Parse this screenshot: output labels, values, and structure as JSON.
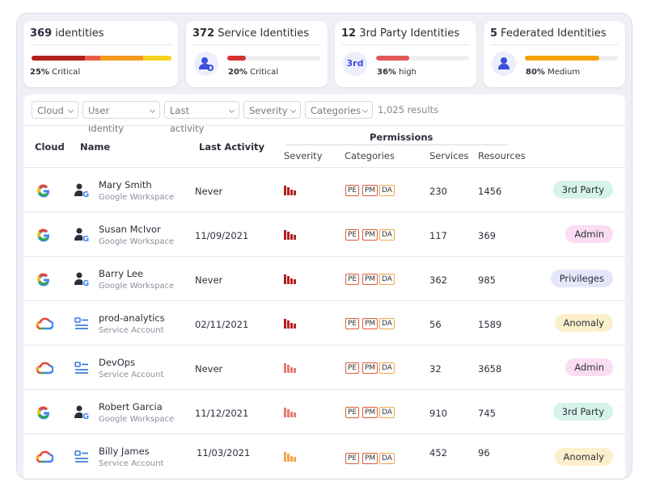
{
  "cards": [
    {
      "count": 369,
      "title": "identities",
      "percent": {
        "value": 25,
        "label": "25%"
      },
      "level": "Critical"
    },
    {
      "count": 372,
      "title": "Service Identities",
      "percent": {
        "value": 20,
        "label": "20%"
      },
      "level": "Critical",
      "color": "#d3312f"
    },
    {
      "count": 12,
      "title": "3rd Party Identities",
      "icon_text": "3rd",
      "percent": {
        "value": 36,
        "label": "36%"
      },
      "level": "high",
      "color": "#e35858"
    },
    {
      "count": 5,
      "title": "Federated Identities",
      "percent": {
        "value": 80,
        "label": "80%"
      },
      "level": "Medium",
      "color": "#f5a106"
    }
  ],
  "filters": [
    "Cloud",
    "User Identity",
    "Last activity",
    "Severity",
    "Categories"
  ],
  "results": "1,025 results",
  "columns": {
    "cloud": "Cloud",
    "name": "Name",
    "last_activity": "Last Activity",
    "permissions": "Permissions",
    "severity": "Severity",
    "categories": "Categories",
    "services": "Services",
    "resources": "Resources"
  },
  "rows": [
    {
      "name": "Mary Smith",
      "type": "Google Workspace",
      "last_activity": "Never",
      "categories": [
        "PE",
        "PM",
        "DA"
      ],
      "services": 230,
      "resources": 1456,
      "tag": "3rd Party"
    },
    {
      "name": "Susan McIvor",
      "type": "Google Workspace",
      "last_activity": "11/09/2021",
      "categories": [
        "PE",
        "PM",
        "DA"
      ],
      "services": 117,
      "resources": 369,
      "tag": "Admin"
    },
    {
      "name": "Barry Lee",
      "type": "Google Workspace",
      "last_activity": "Never",
      "categories": [
        "PE",
        "PM",
        "DA"
      ],
      "services": 362,
      "resources": 985,
      "tag": "Privileges"
    },
    {
      "name": "prod-analytics",
      "type": "Service Account",
      "last_activity": "02/11/2021",
      "categories": [
        "PE",
        "PM",
        "DA"
      ],
      "services": 56,
      "resources": 1589,
      "tag": "Anomaly"
    },
    {
      "name": "DevOps",
      "type": "Service Account",
      "last_activity": "Never",
      "categories": [
        "PE",
        "PM",
        "DA"
      ],
      "services": 32,
      "resources": 3658,
      "tag": "Admin"
    },
    {
      "name": "Robert Garcia",
      "type": "Google Workspace",
      "last_activity": "11/12/2021",
      "categories": [
        "PE",
        "PM",
        "DA"
      ],
      "services": 910,
      "resources": 745,
      "tag": "3rd Party"
    },
    {
      "name": "Billy James",
      "type": "Service Account",
      "last_activity": "11/03/2021",
      "categories": [
        "PE",
        "PM",
        "DA"
      ],
      "services": 452,
      "resources": 96,
      "tag": "Anomaly"
    }
  ]
}
